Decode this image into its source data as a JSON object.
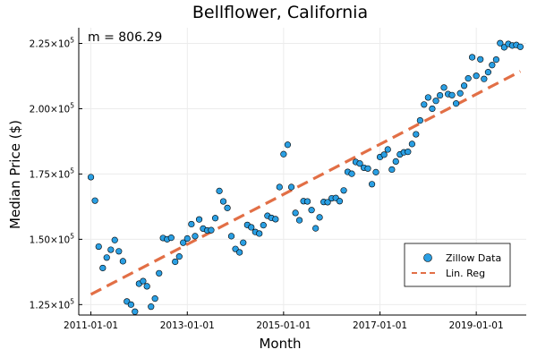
{
  "chart_data": {
    "type": "scatter",
    "title": "Bellflower, California",
    "xlabel": "Month",
    "ylabel": "Median Price ($)",
    "annotation": "m = 806.29",
    "xlim": [
      "2010-10-01",
      "2020-01-15"
    ],
    "ylim": [
      121000,
      231000
    ],
    "x_ticks": [
      "2011-01-01",
      "2013-01-01",
      "2015-01-01",
      "2017-01-01",
      "2019-01-01"
    ],
    "y_ticks": [
      {
        "value": 125000,
        "mantissa": "1.25",
        "exponent": "5"
      },
      {
        "value": 150000,
        "mantissa": "1.50",
        "exponent": "5"
      },
      {
        "value": 175000,
        "mantissa": "1.75",
        "exponent": "5"
      },
      {
        "value": 200000,
        "mantissa": "2.00",
        "exponent": "5"
      },
      {
        "value": 225000,
        "mantissa": "2.25",
        "exponent": "5"
      }
    ],
    "y_tick_base": "×10",
    "grid": true,
    "legend_position": "bottom-right",
    "legend": [
      {
        "label": "Zillow Data",
        "kind": "marker"
      },
      {
        "label": "Lin. Reg",
        "kind": "dashed-line"
      }
    ],
    "colors": {
      "points": "#2a9fe3",
      "fit": "#e26f46",
      "grid": "#ececec",
      "axis": "#000000"
    },
    "series": [
      {
        "name": "Zillow Data",
        "kind": "scatter",
        "points": [
          [
            "2011-01-01",
            173800
          ],
          [
            "2011-02-01",
            164800
          ],
          [
            "2011-03-01",
            147200
          ],
          [
            "2011-04-01",
            139000
          ],
          [
            "2011-05-01",
            143000
          ],
          [
            "2011-06-01",
            146000
          ],
          [
            "2011-07-01",
            149700
          ],
          [
            "2011-08-01",
            145400
          ],
          [
            "2011-09-01",
            141600
          ],
          [
            "2011-10-01",
            126200
          ],
          [
            "2011-11-01",
            125000
          ],
          [
            "2011-12-01",
            122300
          ],
          [
            "2012-01-01",
            133000
          ],
          [
            "2012-02-01",
            134000
          ],
          [
            "2012-03-01",
            132000
          ],
          [
            "2012-04-01",
            124200
          ],
          [
            "2012-05-01",
            127300
          ],
          [
            "2012-06-01",
            137000
          ],
          [
            "2012-07-01",
            150500
          ],
          [
            "2012-08-01",
            150000
          ],
          [
            "2012-09-01",
            150600
          ],
          [
            "2012-10-01",
            141400
          ],
          [
            "2012-11-01",
            143400
          ],
          [
            "2012-12-01",
            148700
          ],
          [
            "2013-01-01",
            150300
          ],
          [
            "2013-02-01",
            155800
          ],
          [
            "2013-03-01",
            151200
          ],
          [
            "2013-04-01",
            157600
          ],
          [
            "2013-05-01",
            154100
          ],
          [
            "2013-06-01",
            153400
          ],
          [
            "2013-07-01",
            153500
          ],
          [
            "2013-08-01",
            158100
          ],
          [
            "2013-09-01",
            168500
          ],
          [
            "2013-10-01",
            164500
          ],
          [
            "2013-11-01",
            162000
          ],
          [
            "2013-12-01",
            151200
          ],
          [
            "2014-01-01",
            146300
          ],
          [
            "2014-02-01",
            145000
          ],
          [
            "2014-03-01",
            148700
          ],
          [
            "2014-04-01",
            155500
          ],
          [
            "2014-05-01",
            154600
          ],
          [
            "2014-06-01",
            152800
          ],
          [
            "2014-07-01",
            152200
          ],
          [
            "2014-08-01",
            155400
          ],
          [
            "2014-09-01",
            159000
          ],
          [
            "2014-10-01",
            158200
          ],
          [
            "2014-11-01",
            157700
          ],
          [
            "2014-12-01",
            170000
          ],
          [
            "2015-01-01",
            182600
          ],
          [
            "2015-02-01",
            186200
          ],
          [
            "2015-03-01",
            170000
          ],
          [
            "2015-04-01",
            160100
          ],
          [
            "2015-05-01",
            157300
          ],
          [
            "2015-06-01",
            164600
          ],
          [
            "2015-07-01",
            164500
          ],
          [
            "2015-08-01",
            161200
          ],
          [
            "2015-09-01",
            154200
          ],
          [
            "2015-10-01",
            158400
          ],
          [
            "2015-11-01",
            164300
          ],
          [
            "2015-12-01",
            164200
          ],
          [
            "2016-01-01",
            165700
          ],
          [
            "2016-02-01",
            165800
          ],
          [
            "2016-03-01",
            164600
          ],
          [
            "2016-04-01",
            168700
          ],
          [
            "2016-05-01",
            175800
          ],
          [
            "2016-06-01",
            175100
          ],
          [
            "2016-07-01",
            179600
          ],
          [
            "2016-08-01",
            179000
          ],
          [
            "2016-09-01",
            177400
          ],
          [
            "2016-10-01",
            177100
          ],
          [
            "2016-11-01",
            171100
          ],
          [
            "2016-12-01",
            175700
          ],
          [
            "2017-01-01",
            181500
          ],
          [
            "2017-02-01",
            182400
          ],
          [
            "2017-03-01",
            184400
          ],
          [
            "2017-04-01",
            176700
          ],
          [
            "2017-05-01",
            179800
          ],
          [
            "2017-06-01",
            182500
          ],
          [
            "2017-07-01",
            183300
          ],
          [
            "2017-08-01",
            183500
          ],
          [
            "2017-09-01",
            186500
          ],
          [
            "2017-10-01",
            190200
          ],
          [
            "2017-11-01",
            195500
          ],
          [
            "2017-12-01",
            201600
          ],
          [
            "2018-01-01",
            204300
          ],
          [
            "2018-02-01",
            200000
          ],
          [
            "2018-03-01",
            203000
          ],
          [
            "2018-04-01",
            205100
          ],
          [
            "2018-05-01",
            208100
          ],
          [
            "2018-06-01",
            205600
          ],
          [
            "2018-07-01",
            205200
          ],
          [
            "2018-08-01",
            202000
          ],
          [
            "2018-09-01",
            205900
          ],
          [
            "2018-10-01",
            208800
          ],
          [
            "2018-11-01",
            211600
          ],
          [
            "2018-12-01",
            219700
          ],
          [
            "2019-01-01",
            212600
          ],
          [
            "2019-02-01",
            218900
          ],
          [
            "2019-03-01",
            211400
          ],
          [
            "2019-04-01",
            214000
          ],
          [
            "2019-05-01",
            216700
          ],
          [
            "2019-06-01",
            218800
          ],
          [
            "2019-07-01",
            225100
          ],
          [
            "2019-08-01",
            223500
          ],
          [
            "2019-09-01",
            224800
          ],
          [
            "2019-10-01",
            224200
          ],
          [
            "2019-11-01",
            224400
          ],
          [
            "2019-12-01",
            223700
          ]
        ]
      },
      {
        "name": "Lin. Reg",
        "kind": "line",
        "style": "dashed",
        "points": [
          [
            "2011-01-01",
            128900
          ],
          [
            "2019-12-01",
            214300
          ]
        ]
      }
    ]
  }
}
